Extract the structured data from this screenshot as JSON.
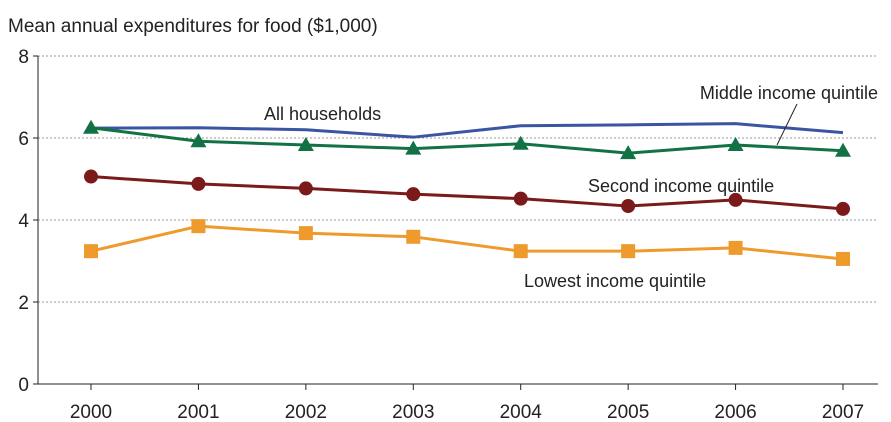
{
  "chart_data": {
    "type": "line",
    "title": "Mean annual expenditures for food ($1,000)",
    "xlabel": "",
    "ylabel": "",
    "categories": [
      "2000",
      "2001",
      "2002",
      "2003",
      "2004",
      "2005",
      "2006",
      "2007"
    ],
    "ylim": [
      0,
      8
    ],
    "yticks": [
      "0",
      "2",
      "4",
      "6",
      "8"
    ],
    "grid": true,
    "legend": "inline labels",
    "series": [
      {
        "name": "All households",
        "color": "#3a55a4",
        "marker": "none",
        "values": [
          6.24,
          6.25,
          6.2,
          6.02,
          6.3,
          6.32,
          6.35,
          6.13
        ]
      },
      {
        "name": "Middle income quintile",
        "color": "#137245",
        "marker": "triangle",
        "values": [
          6.25,
          5.92,
          5.83,
          5.74,
          5.86,
          5.63,
          5.83,
          5.69
        ]
      },
      {
        "name": "Second income quintile",
        "color": "#7b1a1a",
        "marker": "circle",
        "values": [
          5.06,
          4.88,
          4.77,
          4.63,
          4.52,
          4.34,
          4.49,
          4.27
        ]
      },
      {
        "name": "Lowest income quintile",
        "color": "#ee9a2c",
        "marker": "square",
        "values": [
          3.24,
          3.85,
          3.68,
          3.59,
          3.24,
          3.24,
          3.32,
          3.05
        ]
      }
    ]
  }
}
